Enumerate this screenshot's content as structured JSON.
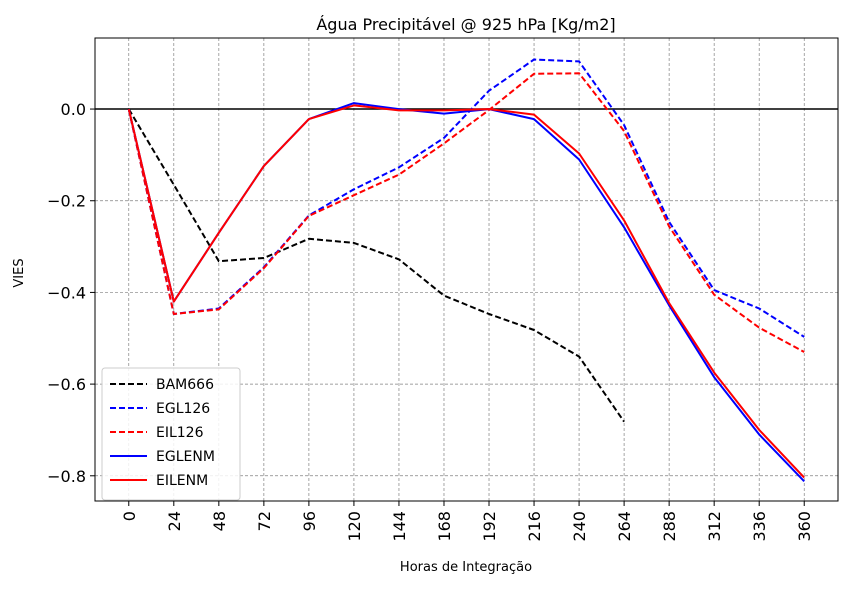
{
  "chart_data": {
    "type": "line",
    "title": "Água Precipitável @ 925 hPa [Kg/m2]",
    "xlabel": "Horas de Integração",
    "ylabel": "VIES",
    "x": [
      0,
      24,
      48,
      72,
      96,
      120,
      144,
      168,
      192,
      216,
      240,
      264,
      288,
      312,
      336,
      360
    ],
    "xlim": [
      -18,
      378
    ],
    "ylim": [
      -0.855,
      0.155
    ],
    "yticks": [
      0.0,
      -0.2,
      -0.4,
      -0.6,
      -0.8
    ],
    "ytick_labels": [
      "0.0",
      "−0.2",
      "−0.4",
      "−0.6",
      "−0.8"
    ],
    "zero_line": 0.0,
    "grid": true,
    "legend_position": "lower-left",
    "series": [
      {
        "name": "BAM666",
        "color": "#000000",
        "dash": true,
        "values": [
          0.0,
          -0.165,
          -0.332,
          -0.325,
          -0.283,
          -0.292,
          -0.328,
          -0.407,
          -0.447,
          -0.482,
          -0.54,
          -0.682,
          null,
          null,
          null,
          null
        ]
      },
      {
        "name": "EGL126",
        "color": "#0000ff",
        "dash": true,
        "values": [
          0.0,
          -0.447,
          -0.435,
          -0.345,
          -0.232,
          -0.175,
          -0.127,
          -0.063,
          0.04,
          0.108,
          0.104,
          -0.035,
          -0.246,
          -0.395,
          -0.435,
          -0.497
        ]
      },
      {
        "name": "EIL126",
        "color": "#ff0000",
        "dash": true,
        "values": [
          0.0,
          -0.447,
          -0.437,
          -0.347,
          -0.233,
          -0.188,
          -0.143,
          -0.075,
          -0.002,
          0.077,
          0.078,
          -0.048,
          -0.256,
          -0.405,
          -0.477,
          -0.53
        ]
      },
      {
        "name": "EGLENM",
        "color": "#0000ff",
        "dash": false,
        "values": [
          0.0,
          -0.42,
          -0.27,
          -0.124,
          -0.022,
          0.013,
          0.0,
          -0.01,
          0.0,
          -0.022,
          -0.11,
          -0.258,
          -0.428,
          -0.585,
          -0.71,
          -0.812
        ]
      },
      {
        "name": "EILENM",
        "color": "#ff0000",
        "dash": false,
        "values": [
          0.0,
          -0.42,
          -0.27,
          -0.124,
          -0.022,
          0.008,
          -0.003,
          -0.003,
          0.0,
          -0.012,
          -0.097,
          -0.243,
          -0.423,
          -0.575,
          -0.7,
          -0.804
        ]
      }
    ]
  }
}
